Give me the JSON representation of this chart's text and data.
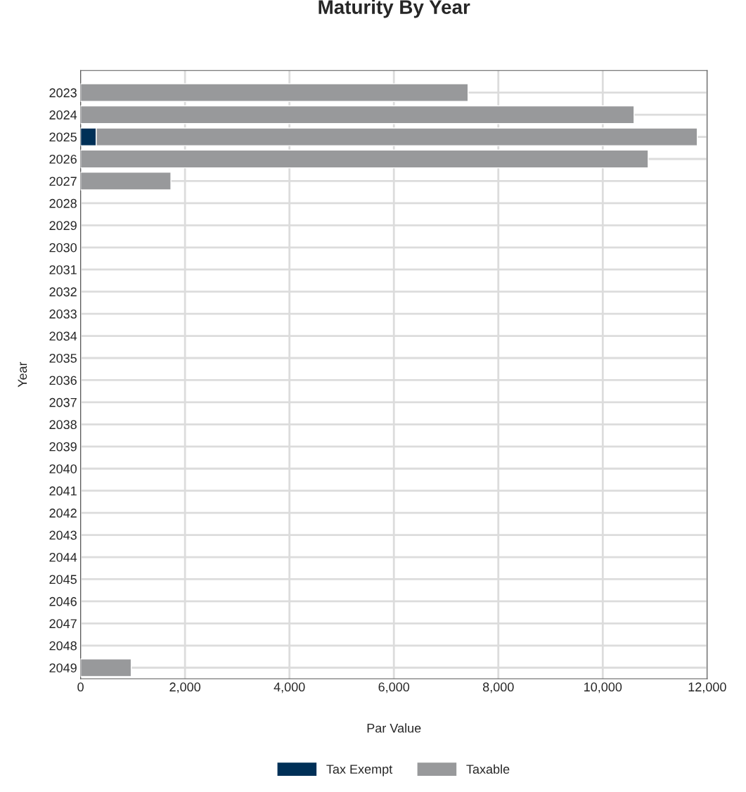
{
  "chart_data": {
    "type": "bar",
    "orientation": "horizontal",
    "stacked": true,
    "title": "Maturity By Year",
    "xlabel": "Par Value",
    "ylabel": "Year",
    "categories": [
      "2023",
      "2024",
      "2025",
      "2026",
      "2027",
      "2028",
      "2029",
      "2030",
      "2031",
      "2032",
      "2033",
      "2034",
      "2035",
      "2036",
      "2037",
      "2038",
      "2039",
      "2040",
      "2041",
      "2042",
      "2043",
      "2044",
      "2045",
      "2046",
      "2047",
      "2048",
      "2049"
    ],
    "series": [
      {
        "name": "Tax Exempt",
        "color": "#003057",
        "values": [
          null,
          null,
          300,
          null,
          null,
          null,
          null,
          null,
          null,
          null,
          null,
          null,
          null,
          null,
          null,
          null,
          null,
          null,
          null,
          null,
          null,
          null,
          null,
          null,
          null,
          null,
          null
        ]
      },
      {
        "name": "Taxable",
        "color": "#98999b",
        "values": [
          7420,
          10600,
          11510,
          10870,
          1730,
          null,
          null,
          null,
          null,
          null,
          null,
          null,
          null,
          null,
          null,
          null,
          null,
          null,
          null,
          null,
          null,
          null,
          null,
          null,
          null,
          null,
          970
        ]
      }
    ],
    "xlim": [
      0,
      12000
    ],
    "xticks": [
      {
        "value": 0,
        "label": "0"
      },
      {
        "value": 2000,
        "label": "2,000"
      },
      {
        "value": 4000,
        "label": "4,000"
      },
      {
        "value": 6000,
        "label": "6,000"
      },
      {
        "value": 8000,
        "label": "8,000"
      },
      {
        "value": 10000,
        "label": "10,000"
      },
      {
        "value": 12000,
        "label": "12,000"
      }
    ],
    "grid": true,
    "legend": "bottom"
  }
}
